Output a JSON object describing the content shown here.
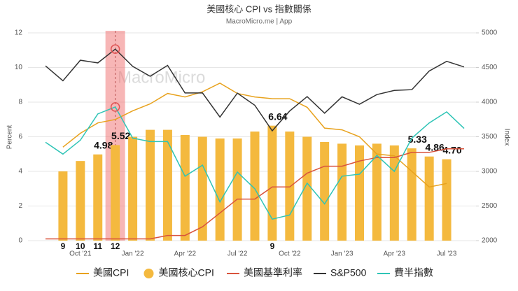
{
  "chart_data": {
    "type": "combo",
    "title": "美國核心 CPI vs 指數關係",
    "subtitle": "MacroMicro.me | App",
    "watermark": "MacroMicro",
    "y_label": "Percent",
    "y2_label": "Index",
    "categories": [
      null,
      null,
      "Oct '21",
      null,
      null,
      "Jan '22",
      null,
      null,
      "Apr '22",
      null,
      null,
      "Jul '22",
      null,
      null,
      "Oct '22",
      null,
      null,
      "Jan '23",
      null,
      null,
      "Apr '23",
      null,
      null,
      "Jul '23",
      null
    ],
    "month_marks": [
      null,
      "9",
      "10",
      "11",
      "12",
      null,
      null,
      null,
      null,
      null,
      null,
      null,
      null,
      "9",
      null,
      null,
      null,
      null,
      null,
      null,
      null,
      null,
      null,
      null,
      null
    ],
    "highlight_index": 4,
    "ylim": [
      0,
      12
    ],
    "yticks": [
      0,
      2,
      4,
      6,
      8,
      10,
      12
    ],
    "y2lim": [
      2000,
      5000
    ],
    "y2ticks": [
      2000,
      2500,
      3000,
      3500,
      4000,
      4500,
      5000
    ],
    "grid": true,
    "series": [
      {
        "name": "美國CPI",
        "type": "line",
        "color": "#e8a21d",
        "values": [
          null,
          5.4,
          6.2,
          6.8,
          7.0,
          7.5,
          7.9,
          8.5,
          8.3,
          8.6,
          9.1,
          8.5,
          8.3,
          8.2,
          8.2,
          7.7,
          6.5,
          6.4,
          6.0,
          5.0,
          4.9,
          4.0,
          3.1,
          3.3,
          null
        ]
      },
      {
        "name": "美國核心CPI",
        "type": "bar",
        "color": "#f4b93e",
        "values": [
          null,
          4.0,
          4.6,
          4.98,
          5.52,
          6.0,
          6.4,
          6.4,
          6.1,
          6.0,
          5.9,
          5.9,
          6.3,
          6.64,
          6.3,
          6.0,
          5.7,
          5.6,
          5.5,
          5.6,
          5.5,
          5.33,
          4.86,
          4.7,
          null
        ],
        "value_labels": [
          null,
          null,
          null,
          "4.98",
          "5.52",
          null,
          null,
          null,
          null,
          null,
          null,
          null,
          null,
          "6.64",
          null,
          null,
          null,
          null,
          null,
          null,
          null,
          "5.33",
          "4.86",
          "4.70",
          null
        ]
      },
      {
        "name": "美國基準利率",
        "type": "line",
        "color": "#d9533c",
        "values": [
          0.1,
          0.1,
          0.1,
          0.1,
          0.1,
          0.1,
          0.1,
          0.3,
          0.3,
          0.8,
          1.6,
          2.4,
          2.4,
          3.1,
          3.1,
          3.9,
          4.3,
          4.3,
          4.6,
          4.8,
          4.8,
          5.1,
          5.1,
          5.3,
          5.3
        ]
      },
      {
        "name": "S&P500",
        "type": "line",
        "axis": "y2",
        "color": "#333333",
        "values": [
          4523,
          4308,
          4605,
          4567,
          4766,
          4516,
          4374,
          4530,
          4132,
          4132,
          3785,
          4130,
          3955,
          3586,
          3872,
          4080,
          3840,
          4077,
          3970,
          4109,
          4169,
          4180,
          4450,
          4589,
          4508
        ]
      },
      {
        "name": "費半指數",
        "type": "line",
        "axis": "y2",
        "color": "#2ec4b6",
        "values": [
          3420,
          3250,
          3450,
          3830,
          3930,
          3480,
          3430,
          3430,
          2930,
          3090,
          2560,
          2990,
          2750,
          2310,
          2370,
          2830,
          2530,
          2930,
          2960,
          3230,
          3000,
          3480,
          3700,
          3860,
          3620
        ]
      }
    ]
  }
}
